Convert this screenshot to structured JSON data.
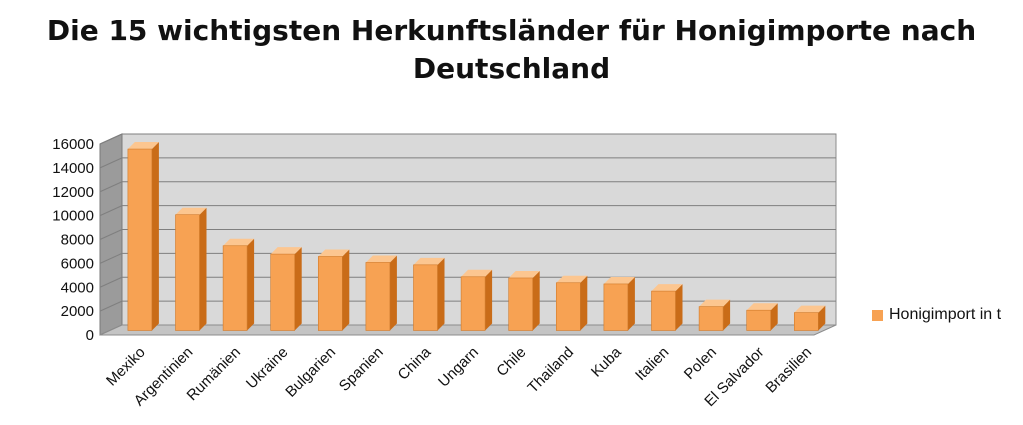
{
  "chart_data": {
    "type": "bar",
    "title_lines": [
      "Die 15 wichtigsten Herkunftsländer für Honigimporte nach",
      "Deutschland"
    ],
    "categories": [
      "Mexiko",
      "Argentinien",
      "Rumänien",
      "Ukraine",
      "Bulgarien",
      "Spanien",
      "China",
      "Ungarn",
      "Chile",
      "Thailand",
      "Kuba",
      "Italien",
      "Polen",
      "El Salvador",
      "Brasilien"
    ],
    "series": [
      {
        "name": "Honigimport in t",
        "values": [
          15200,
          9700,
          7100,
          6400,
          6200,
          5700,
          5500,
          4500,
          4400,
          4000,
          3900,
          3300,
          2000,
          1700,
          1500
        ]
      }
    ],
    "ylim": [
      0,
      16000
    ],
    "yticks": [
      0,
      2000,
      4000,
      6000,
      8000,
      10000,
      12000,
      14000,
      16000
    ],
    "grid": true,
    "style": "3d-column",
    "legend_position": "right",
    "colors": {
      "bar_front": "#f7a253",
      "bar_side": "#c96c18",
      "bar_top": "#fcc690",
      "wall": "#d9d9d9",
      "wall_side": "#9b9b9b",
      "floor": "#c4c4c4",
      "grid": "#7f7f7f"
    }
  }
}
